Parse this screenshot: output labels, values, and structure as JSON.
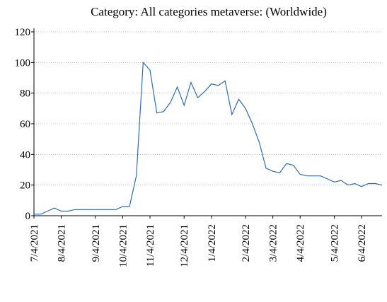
{
  "chart_data": {
    "type": "line",
    "title": "Category: All categories metaverse: (Worldwide)",
    "categories": [
      "7/4/2021",
      null,
      null,
      null,
      "8/4/2021",
      null,
      null,
      null,
      null,
      "9/4/2021",
      null,
      null,
      null,
      "10/4/2021",
      null,
      null,
      null,
      "11/4/2021",
      null,
      null,
      null,
      null,
      "12/4/2021",
      null,
      null,
      null,
      "1/4/2022",
      null,
      null,
      null,
      null,
      "2/4/2022",
      null,
      null,
      null,
      "3/4/2022",
      null,
      null,
      null,
      "4/4/2022",
      null,
      null,
      null,
      null,
      "5/4/2022",
      null,
      null,
      null,
      "6/4/2022",
      null,
      null,
      null
    ],
    "series": [
      {
        "name": "metaverse",
        "color": "#2f6db5",
        "values": [
          1,
          1,
          3,
          5,
          3,
          3,
          4,
          4,
          4,
          4,
          4,
          4,
          4,
          6,
          6,
          26,
          100,
          95,
          67,
          68,
          74,
          84,
          72,
          87,
          77,
          81,
          86,
          85,
          88,
          66,
          76,
          70,
          60,
          48,
          31,
          29,
          28,
          34,
          33,
          27,
          26,
          26,
          26,
          24,
          22,
          23,
          20,
          21,
          19,
          21,
          21,
          20
        ]
      }
    ],
    "ylim": [
      0,
      120
    ],
    "yticks": [
      0,
      20,
      40,
      60,
      80,
      100,
      120
    ],
    "grid": true
  }
}
